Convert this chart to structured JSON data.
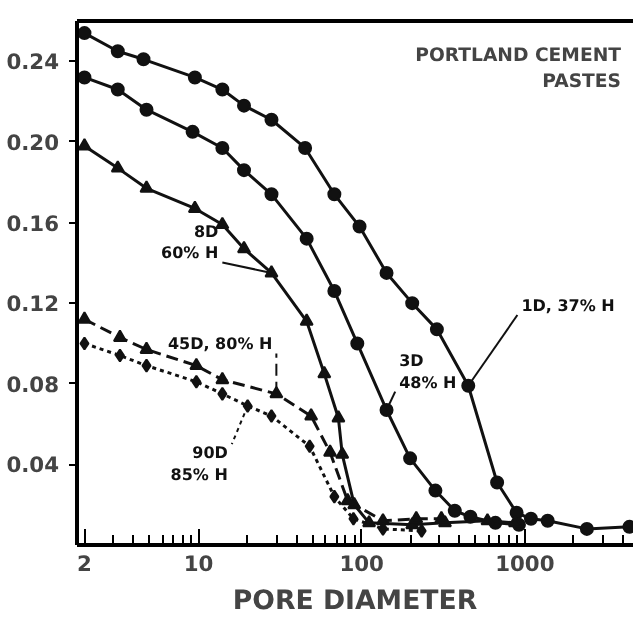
{
  "chart_data": {
    "type": "line",
    "title": "PORTLAND CEMENT PASTES",
    "xlabel": "PORE DIAMETER",
    "log": "x",
    "xlim": [
      1.8,
      4600
    ],
    "xticks": [
      2,
      10,
      100,
      1000
    ],
    "ylim": [
      0,
      0.26
    ],
    "yticks": [
      {
        "value": 0.04,
        "label": "0.04"
      },
      {
        "value": 0.08,
        "label": "0.08"
      },
      {
        "value": 0.12,
        "label": "0.12"
      },
      {
        "value": 0.16,
        "label": "0.16"
      },
      {
        "value": 0.2,
        "label": "0.20"
      },
      {
        "value": 0.24,
        "label": "0.24"
      }
    ],
    "grid": false,
    "series": [
      {
        "name": "1D, 37% H",
        "color": "#111111",
        "marker": "circle",
        "line_style": "solid",
        "x": [
          2,
          3.2,
          4.6,
          9.5,
          14,
          19,
          28,
          45,
          68,
          97,
          142,
          204,
          289,
          450,
          676,
          890,
          1090,
          1380,
          2400,
          4370
        ],
        "values": [
          0.254,
          0.245,
          0.241,
          0.232,
          0.226,
          0.218,
          0.211,
          0.197,
          0.174,
          0.158,
          0.135,
          0.12,
          0.107,
          0.079,
          0.031,
          0.016,
          0.013,
          0.012,
          0.008,
          0.009
        ]
      },
      {
        "name": "3D\n48% H",
        "color": "#111111",
        "marker": "circle",
        "line_style": "solid",
        "x": [
          2,
          3.2,
          4.8,
          9.2,
          14,
          19,
          28,
          46,
          68,
          94,
          142,
          198,
          283,
          372,
          464,
          660,
          920
        ],
        "values": [
          0.232,
          0.226,
          0.216,
          0.205,
          0.197,
          0.186,
          0.174,
          0.152,
          0.126,
          0.1,
          0.067,
          0.043,
          0.027,
          0.017,
          0.014,
          0.011,
          0.01
        ]
      },
      {
        "name": "8D\n60% H",
        "color": "#111111",
        "marker": "triangle",
        "line_style": "solid",
        "x": [
          2,
          3.2,
          4.8,
          9.5,
          14,
          19,
          28,
          46,
          59,
          72,
          76,
          90,
          111,
          204,
          324,
          590,
          870
        ],
        "values": [
          0.198,
          0.187,
          0.177,
          0.167,
          0.159,
          0.147,
          0.135,
          0.111,
          0.085,
          0.063,
          0.045,
          0.02,
          0.011,
          0.01,
          0.011,
          0.012,
          0.011
        ]
      },
      {
        "name": "45D, 80% H",
        "color": "#111111",
        "marker": "triangle",
        "line_style": "dashed",
        "x": [
          2,
          3.3,
          4.8,
          9.7,
          14,
          30,
          49,
          64,
          82,
          135,
          216,
          308
        ],
        "values": [
          0.112,
          0.103,
          0.097,
          0.089,
          0.082,
          0.075,
          0.064,
          0.046,
          0.022,
          0.012,
          0.013,
          0.013
        ]
      },
      {
        "name": "90D\n85% H",
        "color": "#111111",
        "marker": "diamond",
        "line_style": "dotted",
        "x": [
          2,
          3.3,
          4.8,
          9.7,
          14,
          20,
          28,
          48,
          68,
          89,
          135,
          233
        ],
        "values": [
          0.1,
          0.094,
          0.089,
          0.081,
          0.075,
          0.069,
          0.064,
          0.049,
          0.024,
          0.013,
          0.008,
          0.007
        ]
      }
    ]
  }
}
